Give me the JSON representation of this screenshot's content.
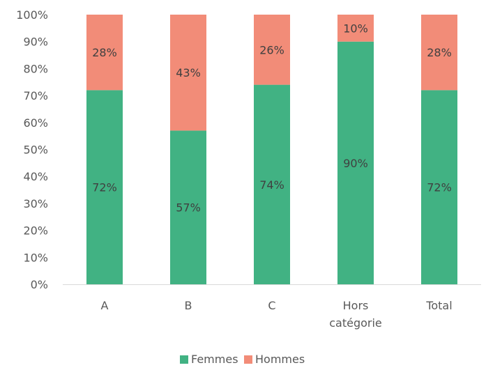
{
  "chart_data": {
    "type": "bar",
    "stacked": true,
    "percent": true,
    "categories": [
      [
        "A"
      ],
      [
        "B"
      ],
      [
        "C"
      ],
      [
        "Hors",
        "catégorie"
      ],
      [
        "Total"
      ]
    ],
    "series": [
      {
        "name": "Femmes",
        "color": "#41B283",
        "values": [
          72,
          57,
          74,
          90,
          72
        ],
        "labels": [
          "72%",
          "57%",
          "74%",
          "90%",
          "72%"
        ]
      },
      {
        "name": "Hommes",
        "color": "#F28C78",
        "values": [
          28,
          43,
          26,
          10,
          28
        ],
        "labels": [
          "28%",
          "43%",
          "26%",
          "10%",
          "28%"
        ]
      }
    ],
    "y_ticks": [
      "0%",
      "10%",
      "20%",
      "30%",
      "40%",
      "50%",
      "60%",
      "70%",
      "80%",
      "90%",
      "100%"
    ],
    "ylim": [
      0,
      100
    ],
    "grid": false,
    "legend_position": "bottom"
  }
}
